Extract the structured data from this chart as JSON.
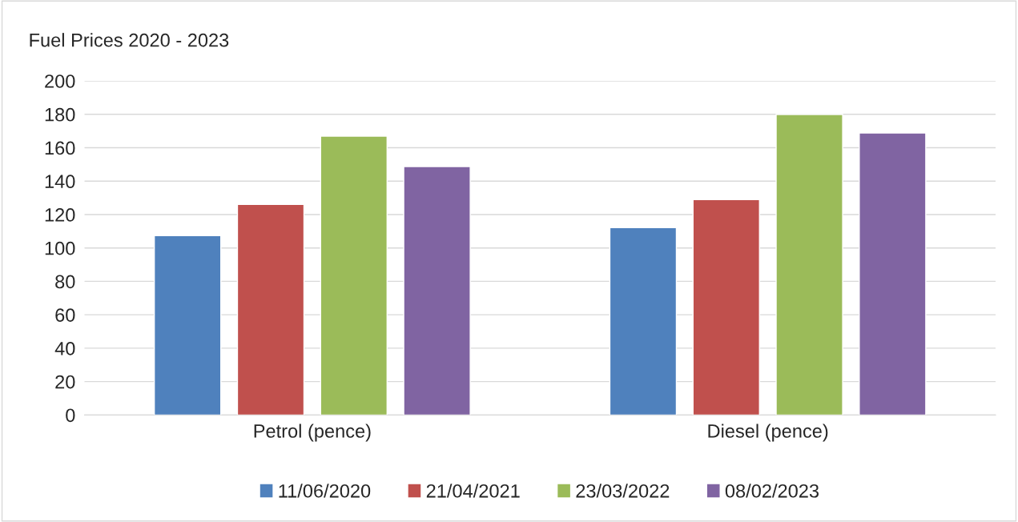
{
  "chart_data": {
    "type": "bar",
    "title": "Fuel Prices 2020 - 2023",
    "categories": [
      "Petrol (pence)",
      "Diesel (pence)"
    ],
    "series": [
      {
        "name": "11/06/2020",
        "color": "#4f81bd",
        "values": [
          107.4,
          112.2
        ]
      },
      {
        "name": "21/04/2021",
        "color": "#c0504d",
        "values": [
          126.1,
          129.0
        ]
      },
      {
        "name": "23/03/2022",
        "color": "#9bbb59",
        "values": [
          166.9,
          179.9
        ]
      },
      {
        "name": "08/02/2023",
        "color": "#8064a2",
        "values": [
          148.7,
          168.8
        ]
      }
    ],
    "ylim": [
      0,
      200
    ],
    "yticks": [
      0,
      20,
      40,
      60,
      80,
      100,
      120,
      140,
      160,
      180,
      200
    ],
    "grid": "y",
    "legend": "bottom"
  }
}
